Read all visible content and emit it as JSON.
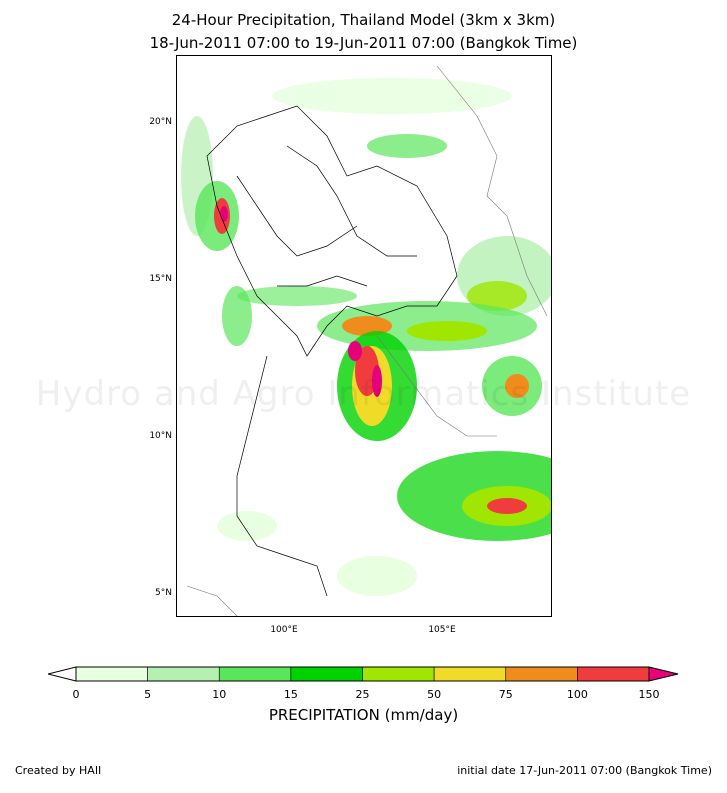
{
  "title": {
    "line1": "24-Hour Precipitation, Thailand Model (3km x 3km)",
    "line2": "18-Jun-2011 07:00 to 19-Jun-2011 07:00 (Bangkok Time)"
  },
  "map": {
    "lat_labels": [
      "20°N",
      "15°N",
      "10°N",
      "5°N"
    ],
    "lon_labels": [
      "100°E",
      "105°E"
    ],
    "watermark": "Hydro and Agro Informatics Institute"
  },
  "colorbar": {
    "label": "PRECIPITATION (mm/day)",
    "ticks": [
      "0",
      "5",
      "10",
      "15",
      "25",
      "50",
      "75",
      "100",
      "150"
    ],
    "colors": [
      "#e8ffe0",
      "#b4f0b0",
      "#5ae65a",
      "#00d200",
      "#a0e600",
      "#f0dc28",
      "#f08c1e",
      "#f03c3c",
      "#e6007a"
    ]
  },
  "footer": {
    "created_by": "Created by HAII",
    "initial_date": "initial date 17-Jun-2011 07:00 (Bangkok Time)"
  }
}
